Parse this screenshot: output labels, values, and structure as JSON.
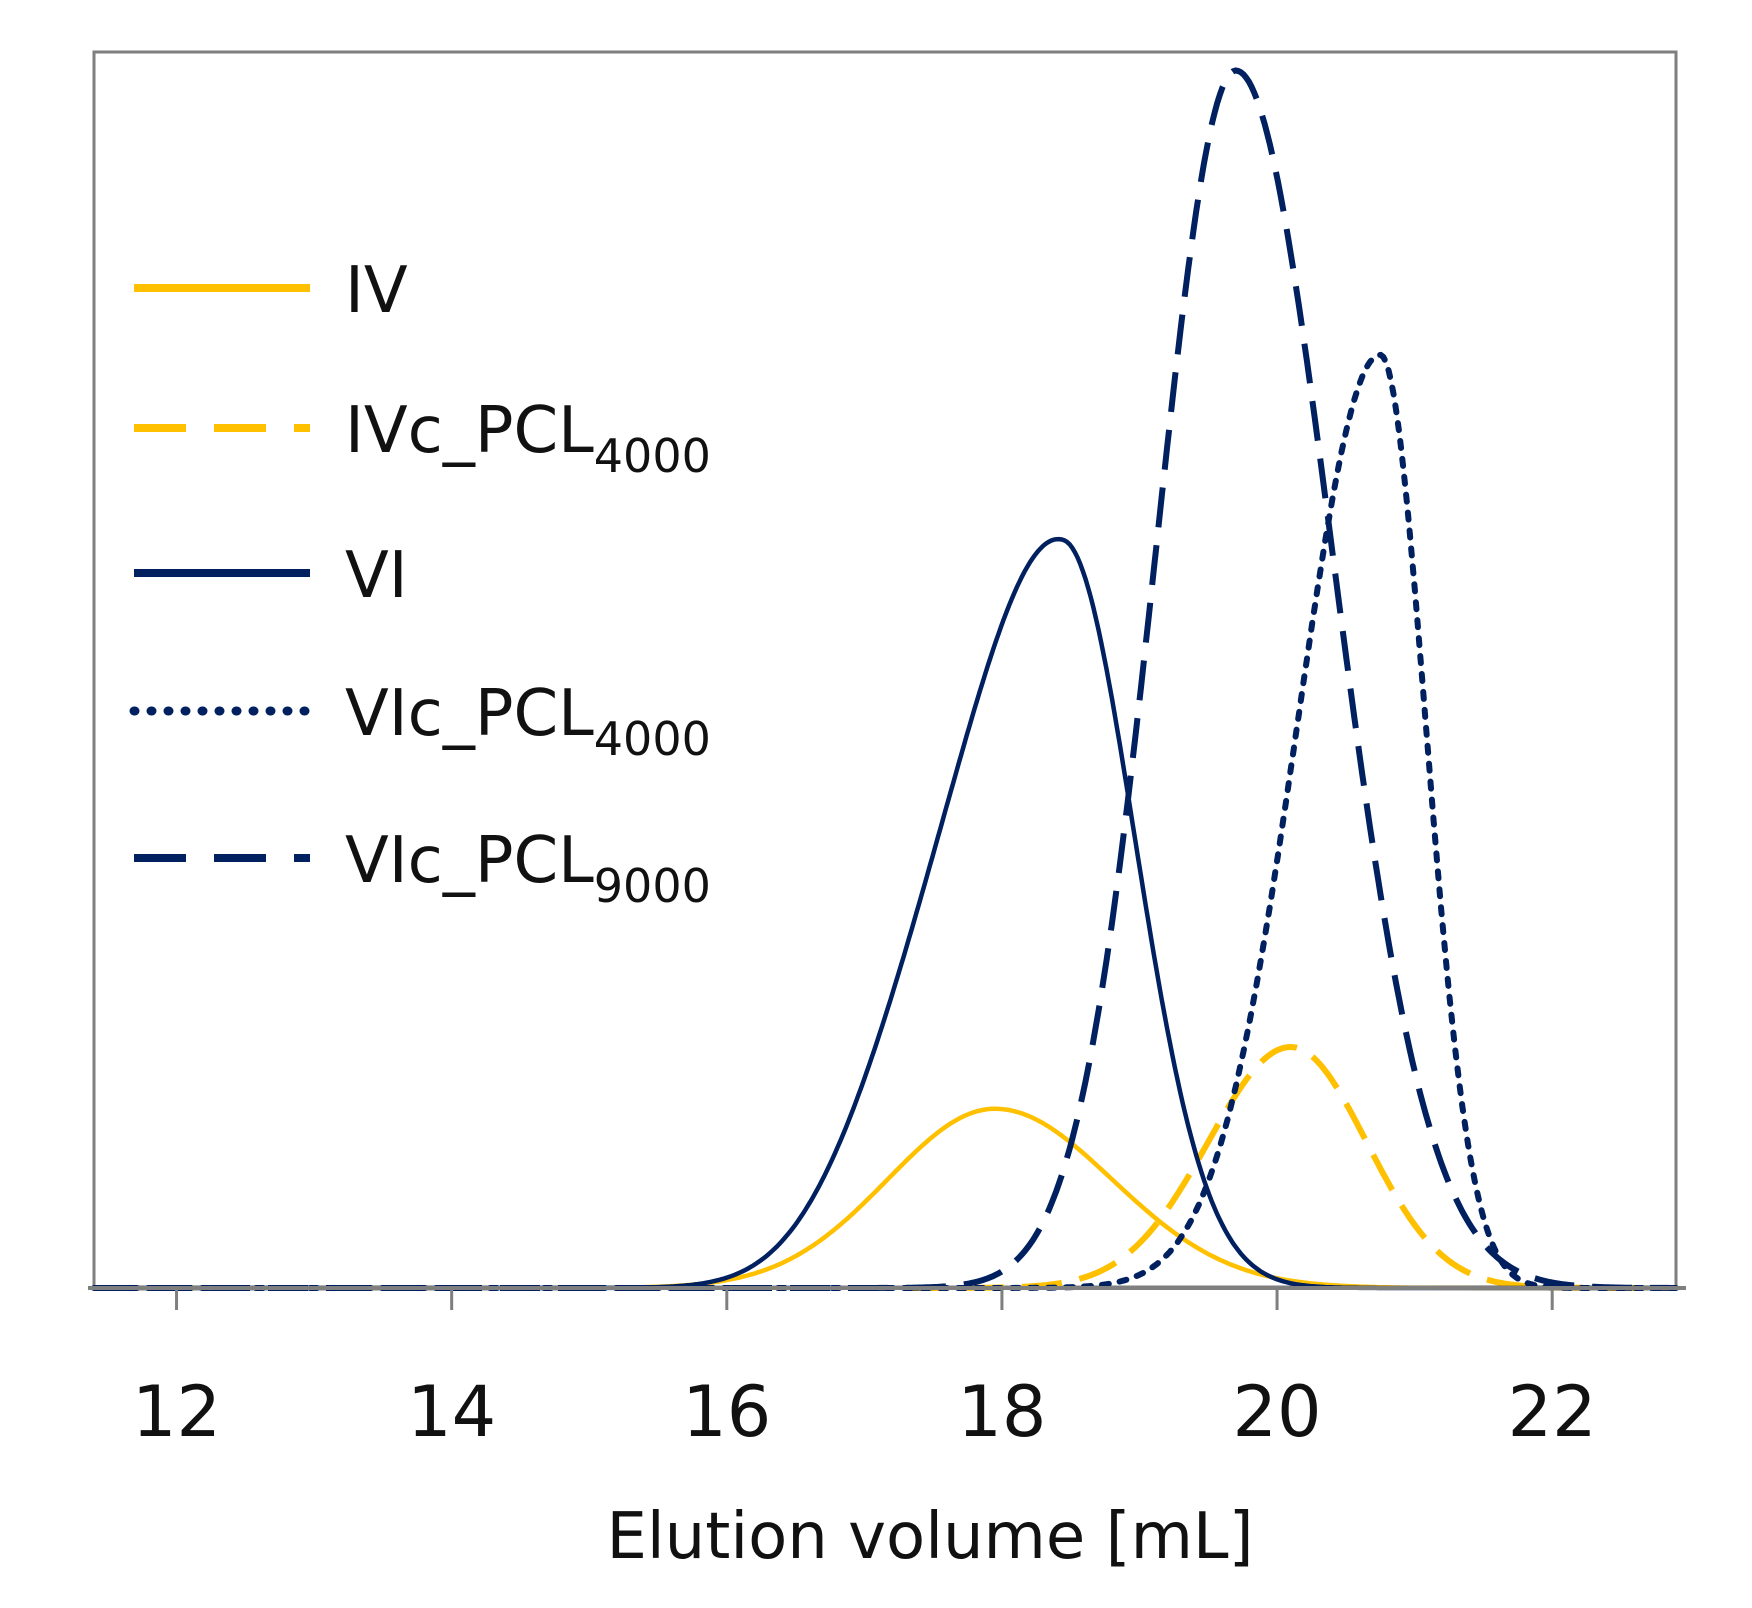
{
  "chart_data": {
    "type": "line",
    "title": "",
    "xlabel": "Elution volume [mL]",
    "ylabel": "",
    "xlim": [
      11.4,
      22.9
    ],
    "ylim": [
      0,
      1.0
    ],
    "xticks": [
      12,
      14,
      16,
      18,
      20,
      22
    ],
    "xtick_labels": [
      "12",
      "14",
      "16",
      "18",
      "20",
      "22"
    ],
    "grid": false,
    "legend_position": "left",
    "series": [
      {
        "key": "iv",
        "name": "IV",
        "legend_main": "IV",
        "legend_sub": "",
        "color": "#FFC000",
        "style": "solid",
        "peaks": [
          {
            "center": 17.95,
            "height": 0.145,
            "sigma_left": 0.78,
            "sigma_right": 0.85
          }
        ]
      },
      {
        "key": "ivc_pcl4000",
        "name": "IVc_PCL4000",
        "legend_main": "IVc_PCL",
        "legend_sub": "4000",
        "color": "#FFC000",
        "style": "dashed",
        "peaks": [
          {
            "center": 20.1,
            "height": 0.195,
            "sigma_left": 0.6,
            "sigma_right": 0.55
          }
        ]
      },
      {
        "key": "vi",
        "name": "VI",
        "legend_main": "VI",
        "legend_sub": "",
        "color": "#002060",
        "style": "solid",
        "peaks": [
          {
            "center": 18.45,
            "height": 0.595,
            "sigma_left": 0.75,
            "sigma_right": 0.52
          },
          {
            "center": 17.3,
            "height": 0.09,
            "sigma_left": 0.55,
            "sigma_right": 0.55
          }
        ]
      },
      {
        "key": "vic_pcl4000",
        "name": "VIc_PCL4000",
        "legend_main": "VIc_PCL",
        "legend_sub": "4000",
        "color": "#002060",
        "style": "dotted",
        "peaks": [
          {
            "center": 20.75,
            "height": 0.755,
            "sigma_left": 0.6,
            "sigma_right": 0.33
          }
        ]
      },
      {
        "key": "vic_pcl9000",
        "name": "VIc_PCL9000",
        "legend_main": "VIc_PCL",
        "legend_sub": "9000",
        "color": "#002060",
        "style": "dashed",
        "peaks": [
          {
            "center": 19.7,
            "height": 0.985,
            "sigma_left": 0.58,
            "sigma_right": 0.7
          }
        ]
      }
    ]
  }
}
